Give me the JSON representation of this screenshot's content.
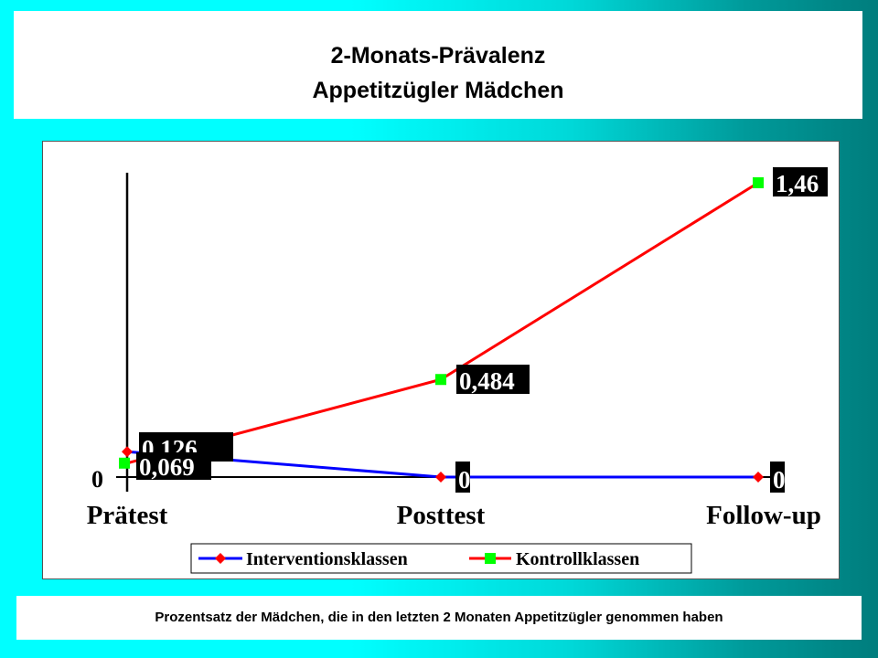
{
  "title": {
    "line1": "2-Monats-Prävalenz",
    "line2": "Appetitzügler Mädchen"
  },
  "caption": "Prozentsatz der Mädchen, die in den letzten 2 Monaten Appetitzügler genommen haben",
  "chart_data": {
    "type": "line",
    "categories": [
      "Prätest",
      "Posttest",
      "Follow-up"
    ],
    "series": [
      {
        "name": "Interventionsklassen",
        "values": [
          0.126,
          0,
          0
        ],
        "labels": [
          "0,126",
          "0",
          "0"
        ],
        "color": "#0000ff",
        "marker": "diamond",
        "marker_color": "#ff0000"
      },
      {
        "name": "Kontrollklassen",
        "values": [
          0.069,
          0.484,
          1.46
        ],
        "labels": [
          "0,069",
          "0,484",
          "1,46"
        ],
        "color": "#ff0000",
        "marker": "square",
        "marker_color": "#00ff00"
      }
    ],
    "y_tick_label": "0",
    "ylim": [
      0,
      1.46
    ],
    "grid": false,
    "legend_position": "bottom",
    "data_label_style": "white text on black box"
  }
}
